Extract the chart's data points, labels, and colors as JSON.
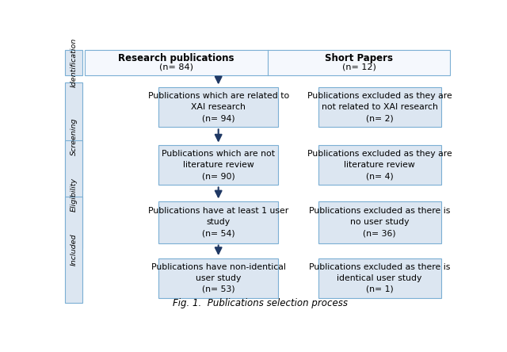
{
  "title": "Fig. 1.  Publications selection process",
  "background_color": "#ffffff",
  "box_fill": "#dce6f1",
  "box_edge": "#7bafd4",
  "side_fill": "#dce6f1",
  "side_edge": "#7bafd4",
  "arrow_color": "#1f3864",
  "stages": [
    "Identification",
    "Screening",
    "Eligibility",
    "Included"
  ],
  "left_header_bold": "Research publications",
  "left_header_n": "(n= 84)",
  "right_header_bold": "Short Papers",
  "right_header_n": "(n= 12)",
  "center_boxes": [
    "Publications which are related to\nXAI research\n(n= 94)",
    "Publications which are not\nliterature review\n(n= 90)",
    "Publications have at least 1 user\nstudy\n(n= 54)",
    "Publications have non-identical\nuser study\n(n= 53)"
  ],
  "right_boxes": [
    "Publications excluded as they are\nnot related to XAI research\n(n= 2)",
    "Publications excluded as they are\nliterature review\n(n= 4)",
    "Publications excluded as there is\nno user study\n(n= 36)",
    "Publications excluded as there is\nidentical user study\n(n= 1)"
  ]
}
